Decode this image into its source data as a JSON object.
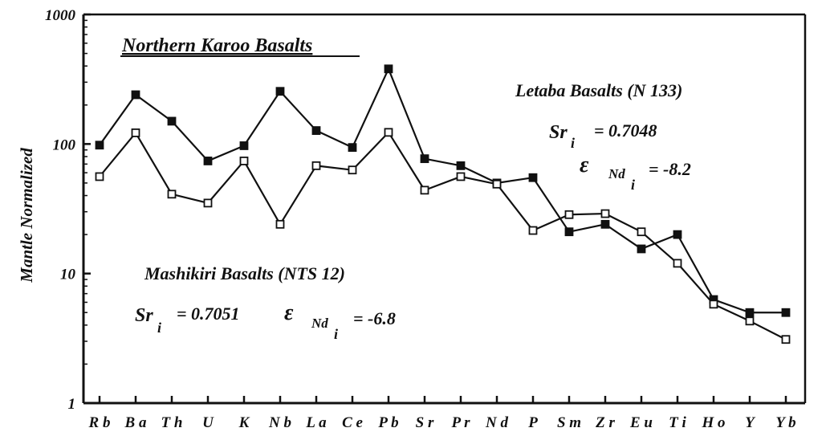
{
  "chart_data": {
    "type": "line",
    "title": "Northern Karoo Basalts",
    "xlabel": "",
    "ylabel": "Mantle Normalized",
    "yscale": "log",
    "ylim": [
      1,
      1000
    ],
    "yticks": [
      "1",
      "10",
      "100",
      "1000"
    ],
    "grid": false,
    "categories": [
      "Rb",
      "Ba",
      "Th",
      "U",
      "K",
      "Nb",
      "La",
      "Ce",
      "Pb",
      "Sr",
      "Pr",
      "Nd",
      "P",
      "Sm",
      "Zr",
      "Eu",
      "Ti",
      "Ho",
      "Y",
      "Yb"
    ],
    "category_labels": [
      "R b",
      "B a",
      "T h",
      "U",
      "K",
      "N b",
      "L a",
      "C e",
      "P b",
      "S r",
      "P r",
      "N d",
      "P",
      "S m",
      "Z r",
      "E u",
      "T i",
      "H o",
      "Y",
      "Y b"
    ],
    "series": [
      {
        "name": "Letaba Basalts (N 133)",
        "marker": "filled-square",
        "values": [
          98,
          240,
          150,
          74,
          97,
          255,
          127,
          94,
          380,
          77,
          68,
          50,
          55,
          21,
          24,
          15.5,
          20,
          6.3,
          5,
          5
        ]
      },
      {
        "name": "Mashikiri Basalts (NTS 12)",
        "marker": "open-square",
        "values": [
          56,
          122,
          41,
          35,
          74,
          24,
          68,
          63,
          123,
          44,
          56,
          49,
          21.5,
          28.5,
          29,
          21,
          12,
          5.8,
          4.3,
          3.1
        ]
      }
    ],
    "annotations": {
      "letaba": {
        "label": "Letaba Basalts (N 133)",
        "sr_symbol": "Sr",
        "sr_sub": "i",
        "sr_value": "= 0.7048",
        "eps_symbol": "ε",
        "eps_sub": "Nd",
        "eps_subsub": "i",
        "eps_value": "= -8.2"
      },
      "mashikiri": {
        "label": "Mashikiri Basalts (NTS 12)",
        "sr_symbol": "Sr",
        "sr_sub": "i",
        "sr_value": "= 0.7051",
        "eps_symbol": "ε",
        "eps_sub": "Nd",
        "eps_subsub": "i",
        "eps_value": "= -6.8"
      }
    },
    "colors": {
      "line": "#111111",
      "filled_marker": "#111111",
      "open_marker_fill": "#ffffff"
    }
  }
}
